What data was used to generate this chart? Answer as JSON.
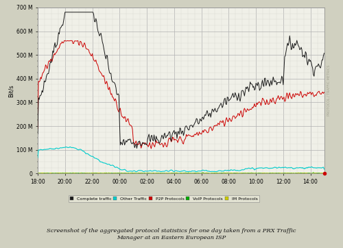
{
  "ylabel": "Bit/s",
  "ylim": [
    0,
    700
  ],
  "yticks": [
    0,
    100,
    200,
    300,
    400,
    500,
    600,
    700
  ],
  "ytick_labels": [
    "0",
    "100 M",
    "200 M",
    "300 M",
    "400 M",
    "500 M",
    "600 M",
    "700 M"
  ],
  "xtick_positions": [
    0,
    2,
    4,
    6,
    8,
    10,
    12,
    14,
    16,
    18,
    20
  ],
  "xtick_labels": [
    "18:00",
    "20:00",
    "22:00",
    "00:00",
    "02:00",
    "04:00",
    "06:00",
    "08:00",
    "10:00",
    "12:00",
    "14:00"
  ],
  "xlim": [
    0,
    21
  ],
  "plot_bg_color": "#f0f0e8",
  "fig_bg_color": "#d0d0c0",
  "grid_major_color": "#b0b0b0",
  "grid_minor_color": "#d8d8d0",
  "caption": "Screenshot of the aggregated protocol statistics for one day taken from a PRX Traffic\nManager at an Eastern European ISP",
  "colors": {
    "complete": "#1a1a1a",
    "other": "#00cccc",
    "p2p": "#cc0000",
    "voip": "#00aa00",
    "im": "#cccc00"
  },
  "legend_labels": [
    "Complete traffic",
    "Other Traffic",
    "P2P Protocols",
    "VoIP Protocols",
    "IM Protocols"
  ],
  "legend_colors": [
    "#1a1a1a",
    "#00cccc",
    "#cc0000",
    "#00aa00",
    "#cccc00"
  ]
}
